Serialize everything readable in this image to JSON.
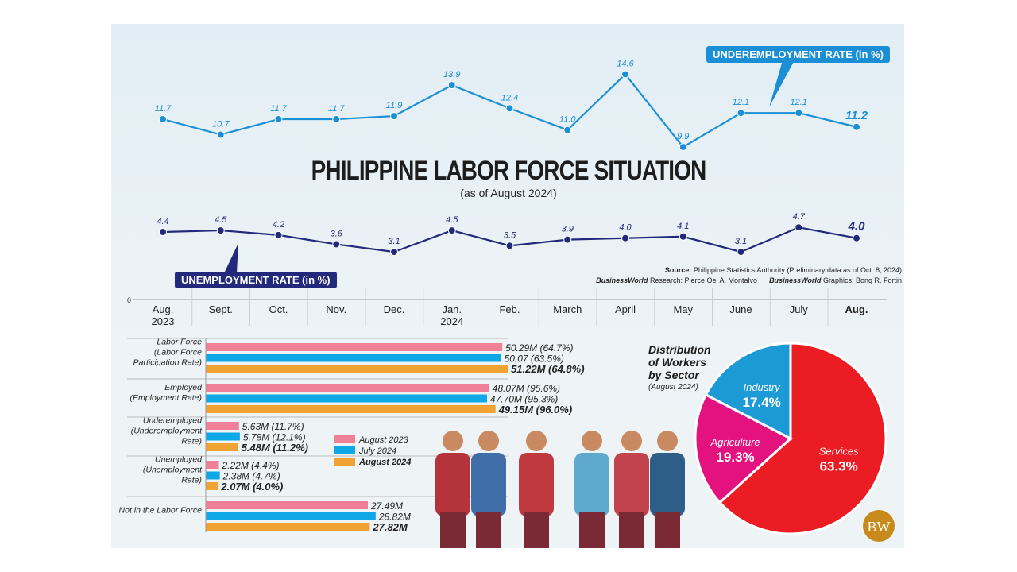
{
  "title": "PHILIPPINE LABOR FORCE SITUATION",
  "subtitle": "(as of August 2024)",
  "source": {
    "label": "Source:",
    "text": "Philippine Statistics Authority (Preliminary data as of Oct. 8, 2024)"
  },
  "research": {
    "brand": "BusinessWorld",
    "label": "Research:",
    "name": "Pierce Oel A. Montalvo"
  },
  "graphics": {
    "brand": "BusinessWorld",
    "label": "Graphics:",
    "name": "Bong R. Fortin"
  },
  "logo": "BW",
  "chart_data": [
    {
      "type": "line",
      "title": "UNDEREMPLOYMENT RATE (in %)",
      "color": "#1b8fd6",
      "categories": [
        "Aug. 2023",
        "Sept.",
        "Oct.",
        "Nov.",
        "Dec.",
        "Jan. 2024",
        "Feb.",
        "March",
        "April",
        "May",
        "June",
        "July",
        "Aug."
      ],
      "values": [
        11.7,
        10.7,
        11.7,
        11.7,
        11.9,
        13.9,
        12.4,
        11.0,
        14.6,
        9.9,
        12.1,
        12.1,
        11.2
      ]
    },
    {
      "type": "line",
      "title": "UNEMPLOYMENT RATE (in %)",
      "color": "#23297a",
      "y_axis_label": "0",
      "categories": [
        "Aug. 2023",
        "Sept.",
        "Oct.",
        "Nov.",
        "Dec.",
        "Jan. 2024",
        "Feb.",
        "March",
        "April",
        "May",
        "June",
        "July",
        "Aug."
      ],
      "values": [
        4.4,
        4.5,
        4.2,
        3.6,
        3.1,
        4.5,
        3.5,
        3.9,
        4.0,
        4.1,
        3.1,
        4.7,
        4.0
      ]
    },
    {
      "type": "bar",
      "orientation": "horizontal",
      "categories": [
        "Labor Force (Labor Force Participation Rate)",
        "Employed (Employment Rate)",
        "Underemployed (Underemployment Rate)",
        "Unemployed (Unemployment Rate)",
        "Not in the Labor Force"
      ],
      "legend": "middle",
      "series": [
        {
          "name": "August 2023",
          "color": "#f07f98",
          "values": [
            50.29,
            48.07,
            5.63,
            2.22,
            27.49
          ],
          "labels": [
            "50.29M (64.7%)",
            "48.07M (95.6%)",
            "5.63M (11.7%)",
            "2.22M (4.4%)",
            "27.49M"
          ]
        },
        {
          "name": "July 2024",
          "color": "#0fa8e6",
          "values": [
            50.07,
            47.7,
            5.78,
            2.38,
            28.82
          ],
          "labels": [
            "50.07 (63.5%)",
            "47.70M (95.3%)",
            "5.78M (12.1%)",
            "2.38M (4.7%)",
            "28.82M"
          ]
        },
        {
          "name": "August 2024",
          "color": "#f0a332",
          "values": [
            51.22,
            49.15,
            5.48,
            2.07,
            27.82
          ],
          "labels": [
            "51.22M (64.8%)",
            "49.15M (96.0%)",
            "5.48M (11.2%)",
            "2.07M (4.0%)",
            "27.82M"
          ]
        }
      ]
    },
    {
      "type": "pie",
      "title": "Distribution of Workers by Sector",
      "subtitle": "(August 2024)",
      "slices": [
        {
          "name": "Services",
          "value": 63.3,
          "label": "63.3%",
          "color": "#ec1c24"
        },
        {
          "name": "Agriculture",
          "value": 19.3,
          "label": "19.3%",
          "color": "#e3127f"
        },
        {
          "name": "Industry",
          "value": 17.4,
          "label": "17.4%",
          "color": "#1b9ad6"
        }
      ]
    }
  ]
}
